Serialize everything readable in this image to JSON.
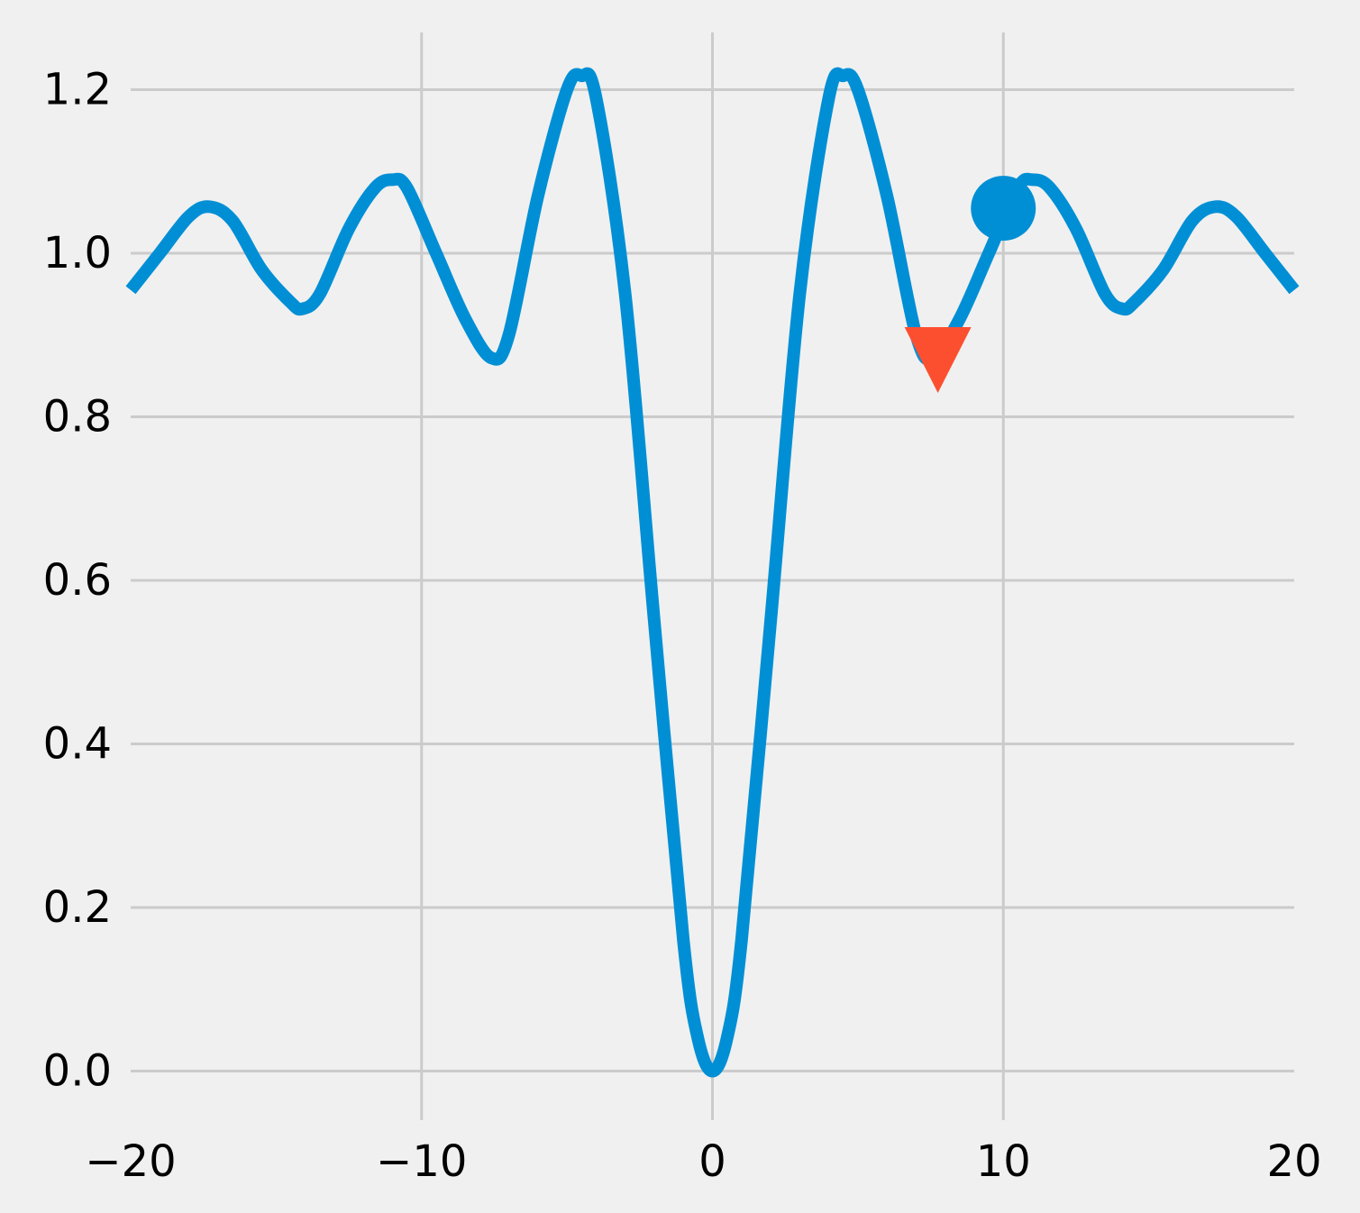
{
  "chart_data": {
    "type": "line",
    "title": "",
    "xlabel": "",
    "ylabel": "",
    "xlim": [
      -20,
      20
    ],
    "ylim": [
      -0.06,
      1.27
    ],
    "grid": true,
    "x_ticks": [
      -20,
      -10,
      0,
      10,
      20
    ],
    "x_tick_labels": [
      "−20",
      "−10",
      "0",
      "10",
      "20"
    ],
    "y_ticks": [
      0.0,
      0.2,
      0.4,
      0.6,
      0.8,
      1.0,
      1.2
    ],
    "y_tick_labels": [
      "0.0",
      "0.2",
      "0.4",
      "0.6",
      "0.8",
      "1.0",
      "1.2"
    ],
    "series": [
      {
        "type": "line",
        "color": "#008fd5",
        "x": [
          -20,
          -19,
          -18,
          -17.3,
          -16.5,
          -15.5,
          -14.5,
          -14.1,
          -13.5,
          -12.5,
          -11.6,
          -11.0,
          -10.5,
          -9.5,
          -8.5,
          -7.6,
          -7.0,
          -6.0,
          -5.0,
          -4.5,
          -4.0,
          -3.0,
          -2.0,
          -1.0,
          -0.5,
          0,
          0.5,
          1.0,
          2.0,
          3.0,
          4.0,
          4.5,
          5.0,
          6.0,
          7.0,
          7.6,
          8.5,
          9.5,
          10.5,
          11.0,
          11.6,
          12.5,
          13.5,
          14.1,
          14.5,
          15.5,
          16.5,
          17.3,
          18,
          19,
          20
        ],
        "y": [
          0.955,
          1.0,
          1.045,
          1.057,
          1.04,
          0.98,
          0.94,
          0.932,
          0.95,
          1.03,
          1.08,
          1.09,
          1.08,
          1.0,
          0.92,
          0.872,
          0.9,
          1.07,
          1.2,
          1.217,
          1.19,
          0.95,
          0.55,
          0.16,
          0.04,
          0.0,
          0.04,
          0.16,
          0.55,
          0.95,
          1.19,
          1.217,
          1.2,
          1.07,
          0.9,
          0.872,
          0.92,
          1.0,
          1.08,
          1.09,
          1.08,
          1.03,
          0.95,
          0.932,
          0.94,
          0.98,
          1.04,
          1.057,
          1.045,
          1.0,
          0.955
        ]
      }
    ],
    "markers": [
      {
        "shape": "circle",
        "color": "#008fd5",
        "x": 10,
        "y": 1.055
      },
      {
        "shape": "triangle-down",
        "color": "#fc4f30",
        "x": 7.75,
        "y": 0.87
      }
    ],
    "background": "#f0f0f0",
    "grid_color": "#cbcbcb"
  }
}
